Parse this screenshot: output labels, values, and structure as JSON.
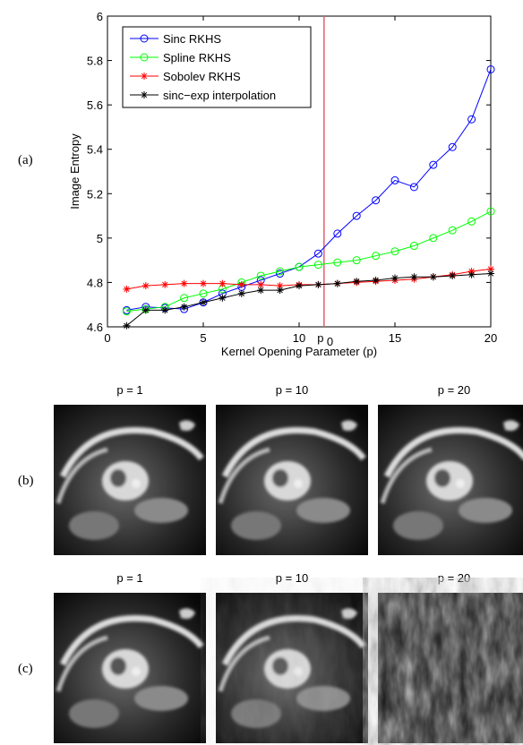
{
  "chart_data": {
    "type": "line",
    "x_label": "Kernel Opening Parameter (p)",
    "y_label": "Image Entropy",
    "x": [
      1,
      2,
      3,
      4,
      5,
      6,
      7,
      8,
      9,
      10,
      11,
      12,
      13,
      14,
      15,
      16,
      17,
      18,
      19,
      20
    ],
    "xlim": [
      0,
      20
    ],
    "xticks": [
      0,
      5,
      10,
      15,
      20
    ],
    "ylim": [
      4.6,
      6
    ],
    "yticks": [
      4.6,
      4.8,
      5,
      5.2,
      5.4,
      5.6,
      5.8,
      6
    ],
    "legend": "upper left",
    "series": [
      {
        "name": "Sinc RKHS",
        "color": "#0000ff",
        "marker": "o",
        "values": [
          4.675,
          4.69,
          4.685,
          4.68,
          4.71,
          4.75,
          4.78,
          4.81,
          4.84,
          4.87,
          4.93,
          5.02,
          5.1,
          5.17,
          5.26,
          5.23,
          5.33,
          5.41,
          5.535,
          5.76
        ]
      },
      {
        "name": "Spline RKHS",
        "color": "#00ff00",
        "marker": "o",
        "values": [
          4.67,
          4.68,
          4.69,
          4.73,
          4.75,
          4.77,
          4.8,
          4.83,
          4.85,
          4.87,
          4.88,
          4.89,
          4.9,
          4.92,
          4.94,
          4.965,
          5.0,
          5.035,
          5.075,
          5.12
        ]
      },
      {
        "name": "Sobolev RKHS",
        "color": "#ff0000",
        "marker": "*",
        "values": [
          4.77,
          4.785,
          4.79,
          4.795,
          4.795,
          4.795,
          4.79,
          4.79,
          4.785,
          4.79,
          4.79,
          4.795,
          4.8,
          4.805,
          4.81,
          4.815,
          4.825,
          4.835,
          4.85,
          4.86
        ]
      },
      {
        "name": "sinc−exp interpolation",
        "color": "#000000",
        "marker": "*",
        "values": [
          4.605,
          4.675,
          4.675,
          4.69,
          4.71,
          4.73,
          4.75,
          4.765,
          4.765,
          4.785,
          4.79,
          4.795,
          4.805,
          4.81,
          4.82,
          4.825,
          4.825,
          4.83,
          4.835,
          4.84
        ]
      }
    ],
    "annotation": {
      "label": "p",
      "subscript": "0",
      "x": 11.3,
      "color": "#e06070"
    }
  },
  "figure": {
    "panel_labels": [
      "(a)",
      "(b)",
      "(c)"
    ],
    "rows": [
      {
        "captions": [
          "p = 1",
          "p = 10",
          "p = 20"
        ]
      },
      {
        "captions": [
          "p = 1",
          "p = 10",
          "p = 20"
        ]
      }
    ]
  }
}
